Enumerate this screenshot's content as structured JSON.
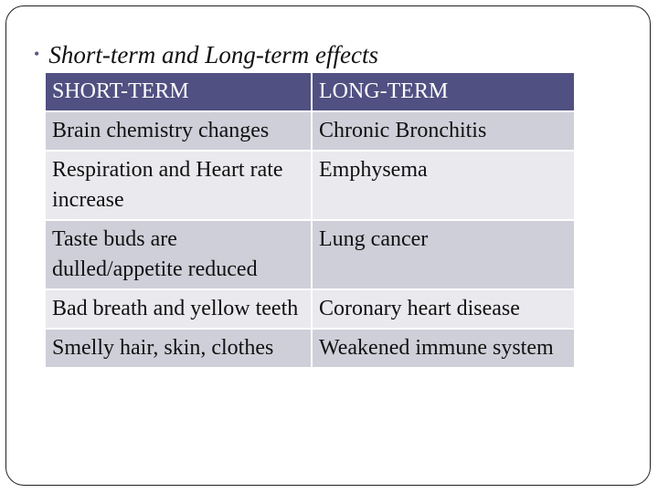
{
  "slide": {
    "bullet": "Short-term and Long-term effects",
    "bullet_marker": "•"
  },
  "table": {
    "headers": [
      "SHORT-TERM",
      "LONG-TERM"
    ],
    "rows": [
      [
        "Brain chemistry changes",
        "Chronic Bronchitis"
      ],
      [
        "Respiration and Heart rate increase",
        "Emphysema"
      ],
      [
        "Taste buds are dulled/appetite reduced",
        "Lung cancer"
      ],
      [
        "Bad breath and yellow teeth",
        "Coronary heart disease"
      ],
      [
        "Smelly hair, skin, clothes",
        "Weakened immune system"
      ]
    ],
    "colors": {
      "header_bg": "#505082",
      "row_dark": "#cfcfd9",
      "row_light": "#e9e9ee"
    }
  }
}
